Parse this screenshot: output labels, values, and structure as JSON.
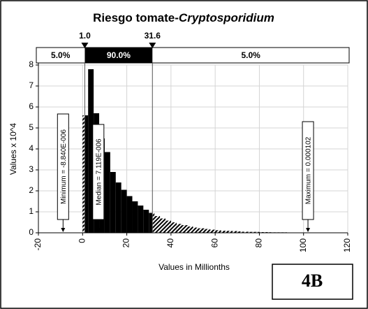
{
  "chart_data": {
    "type": "histogram",
    "title": [
      "Riesgo tomate-",
      "Cryptosporidium"
    ],
    "xlabel": "Values in Millionths",
    "ylabel": "Values x 10^4",
    "bins": [
      0,
      2.5,
      5,
      7.5,
      10,
      12.5,
      15,
      17.5,
      20,
      22.5,
      25,
      27.5,
      30,
      32.5,
      35,
      37.5,
      40,
      42.5,
      45,
      47.5,
      50,
      52.5,
      55,
      57.5,
      60,
      62.5,
      65,
      67.5,
      70,
      72.5,
      75,
      77.5,
      80,
      82.5,
      85,
      87.5,
      90,
      92.5,
      95,
      97.5,
      100
    ],
    "values": [
      5.6,
      7.8,
      5.7,
      4.5,
      3.85,
      2.9,
      2.4,
      2.05,
      1.75,
      1.5,
      1.3,
      1.1,
      0.95,
      0.8,
      0.68,
      0.58,
      0.5,
      0.42,
      0.36,
      0.3,
      0.25,
      0.21,
      0.18,
      0.15,
      0.12,
      0.1,
      0.09,
      0.08,
      0.06,
      0.05,
      0.04,
      0.04,
      0.03,
      0.03,
      0.02,
      0.02,
      0.02,
      0.01,
      0.01,
      0.01
    ],
    "color": "#000000",
    "xlim": [
      -20,
      120
    ],
    "xticks": [
      -20,
      0,
      20,
      40,
      60,
      80,
      100,
      120
    ],
    "ylim": [
      0,
      8
    ],
    "yticks": [
      0,
      1,
      2,
      3,
      4,
      5,
      6,
      7,
      8
    ],
    "grid": true,
    "delimiters": [
      {
        "value": 1,
        "label": "1.0"
      },
      31.6
    ],
    "bands": [
      "5.0%",
      "90.0%",
      "5.0%"
    ],
    "annotations": [
      {
        "x": -8.84,
        "text": "Minimum = -8.840E-006"
      },
      {
        "x": 7.119,
        "text": "Median = 7.119E-006"
      },
      {
        "x": 102,
        "text": "Maximum = 0.000102"
      }
    ],
    "panel_label": "4B"
  }
}
